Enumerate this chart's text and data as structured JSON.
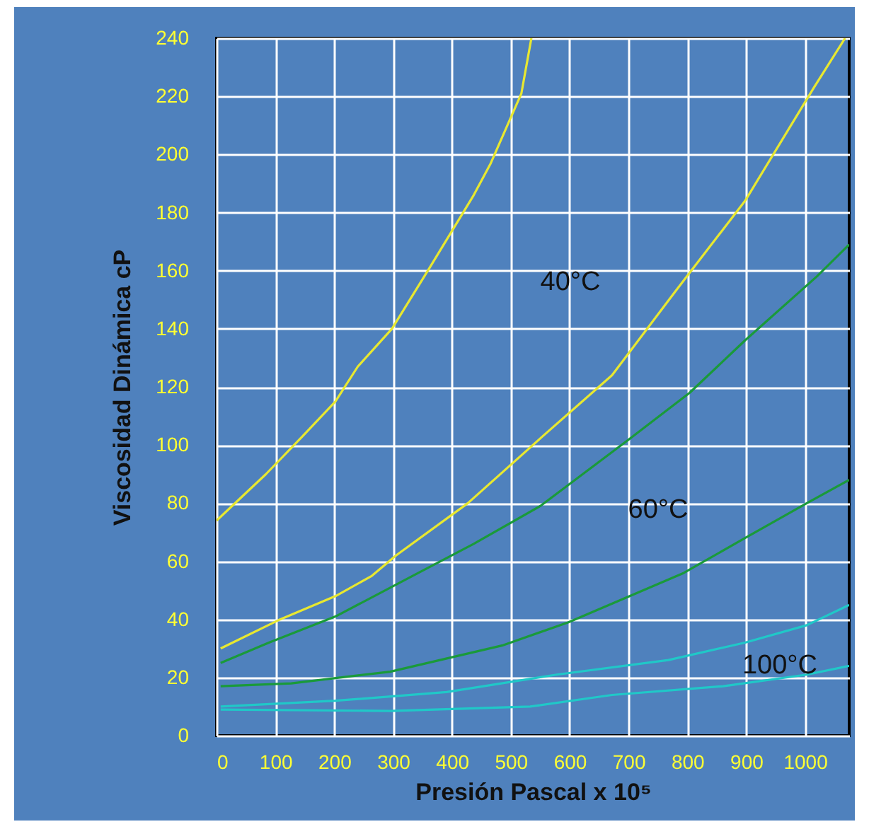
{
  "chart_data": {
    "type": "line",
    "xlabel": "Presión Pascal x 10⁵",
    "ylabel": "Viscosidad Dinámica cP",
    "xlim": [
      0,
      1075
    ],
    "ylim": [
      0,
      240
    ],
    "xticks": [
      0,
      100,
      200,
      300,
      400,
      500,
      600,
      700,
      800,
      900,
      1000
    ],
    "yticks": [
      0,
      20,
      40,
      60,
      80,
      100,
      120,
      140,
      160,
      180,
      200,
      220,
      240
    ],
    "grid": true,
    "series": [
      {
        "color": "#e8e830",
        "x": [
          0,
          84,
          146,
          202,
          240,
          298,
          362,
          437,
          466,
          518,
          535
        ],
        "values": [
          74,
          90,
          103,
          115,
          127,
          140,
          161,
          186,
          197,
          221,
          240
        ]
      },
      {
        "color": "#e8e830",
        "x": [
          7,
          108,
          202,
          264,
          305,
          427,
          554,
          672,
          780,
          898,
          1015,
          1068
        ],
        "values": [
          30,
          40,
          48,
          55,
          62,
          80,
          103,
          124,
          153,
          184,
          223,
          240
        ]
      },
      {
        "color": "#1a9a3a",
        "x": [
          7,
          89,
          202,
          343,
          437,
          550,
          701,
          804,
          898,
          1020,
          1075
        ],
        "values": [
          25,
          32,
          41,
          56,
          66,
          79,
          102,
          118,
          136,
          158,
          169
        ]
      },
      {
        "color": "#1a9a3a",
        "x": [
          7,
          127,
          295,
          485,
          598,
          794,
          898,
          1003,
          1075
        ],
        "values": [
          17,
          18,
          22,
          31,
          39,
          56,
          68,
          80,
          88
        ]
      },
      {
        "color": "#20c8c8",
        "x": [
          7,
          202,
          391,
          578,
          768,
          898,
          1003,
          1075
        ],
        "values": [
          10,
          12,
          15,
          21,
          26,
          32,
          38,
          45
        ]
      },
      {
        "color": "#20c8c8",
        "x": [
          7,
          295,
          533,
          672,
          861,
          1003,
          1075
        ],
        "values": [
          9,
          8.5,
          10,
          14,
          17,
          21,
          24
        ]
      }
    ],
    "annotations": [
      "40°C",
      "60°C",
      "100°C"
    ]
  }
}
